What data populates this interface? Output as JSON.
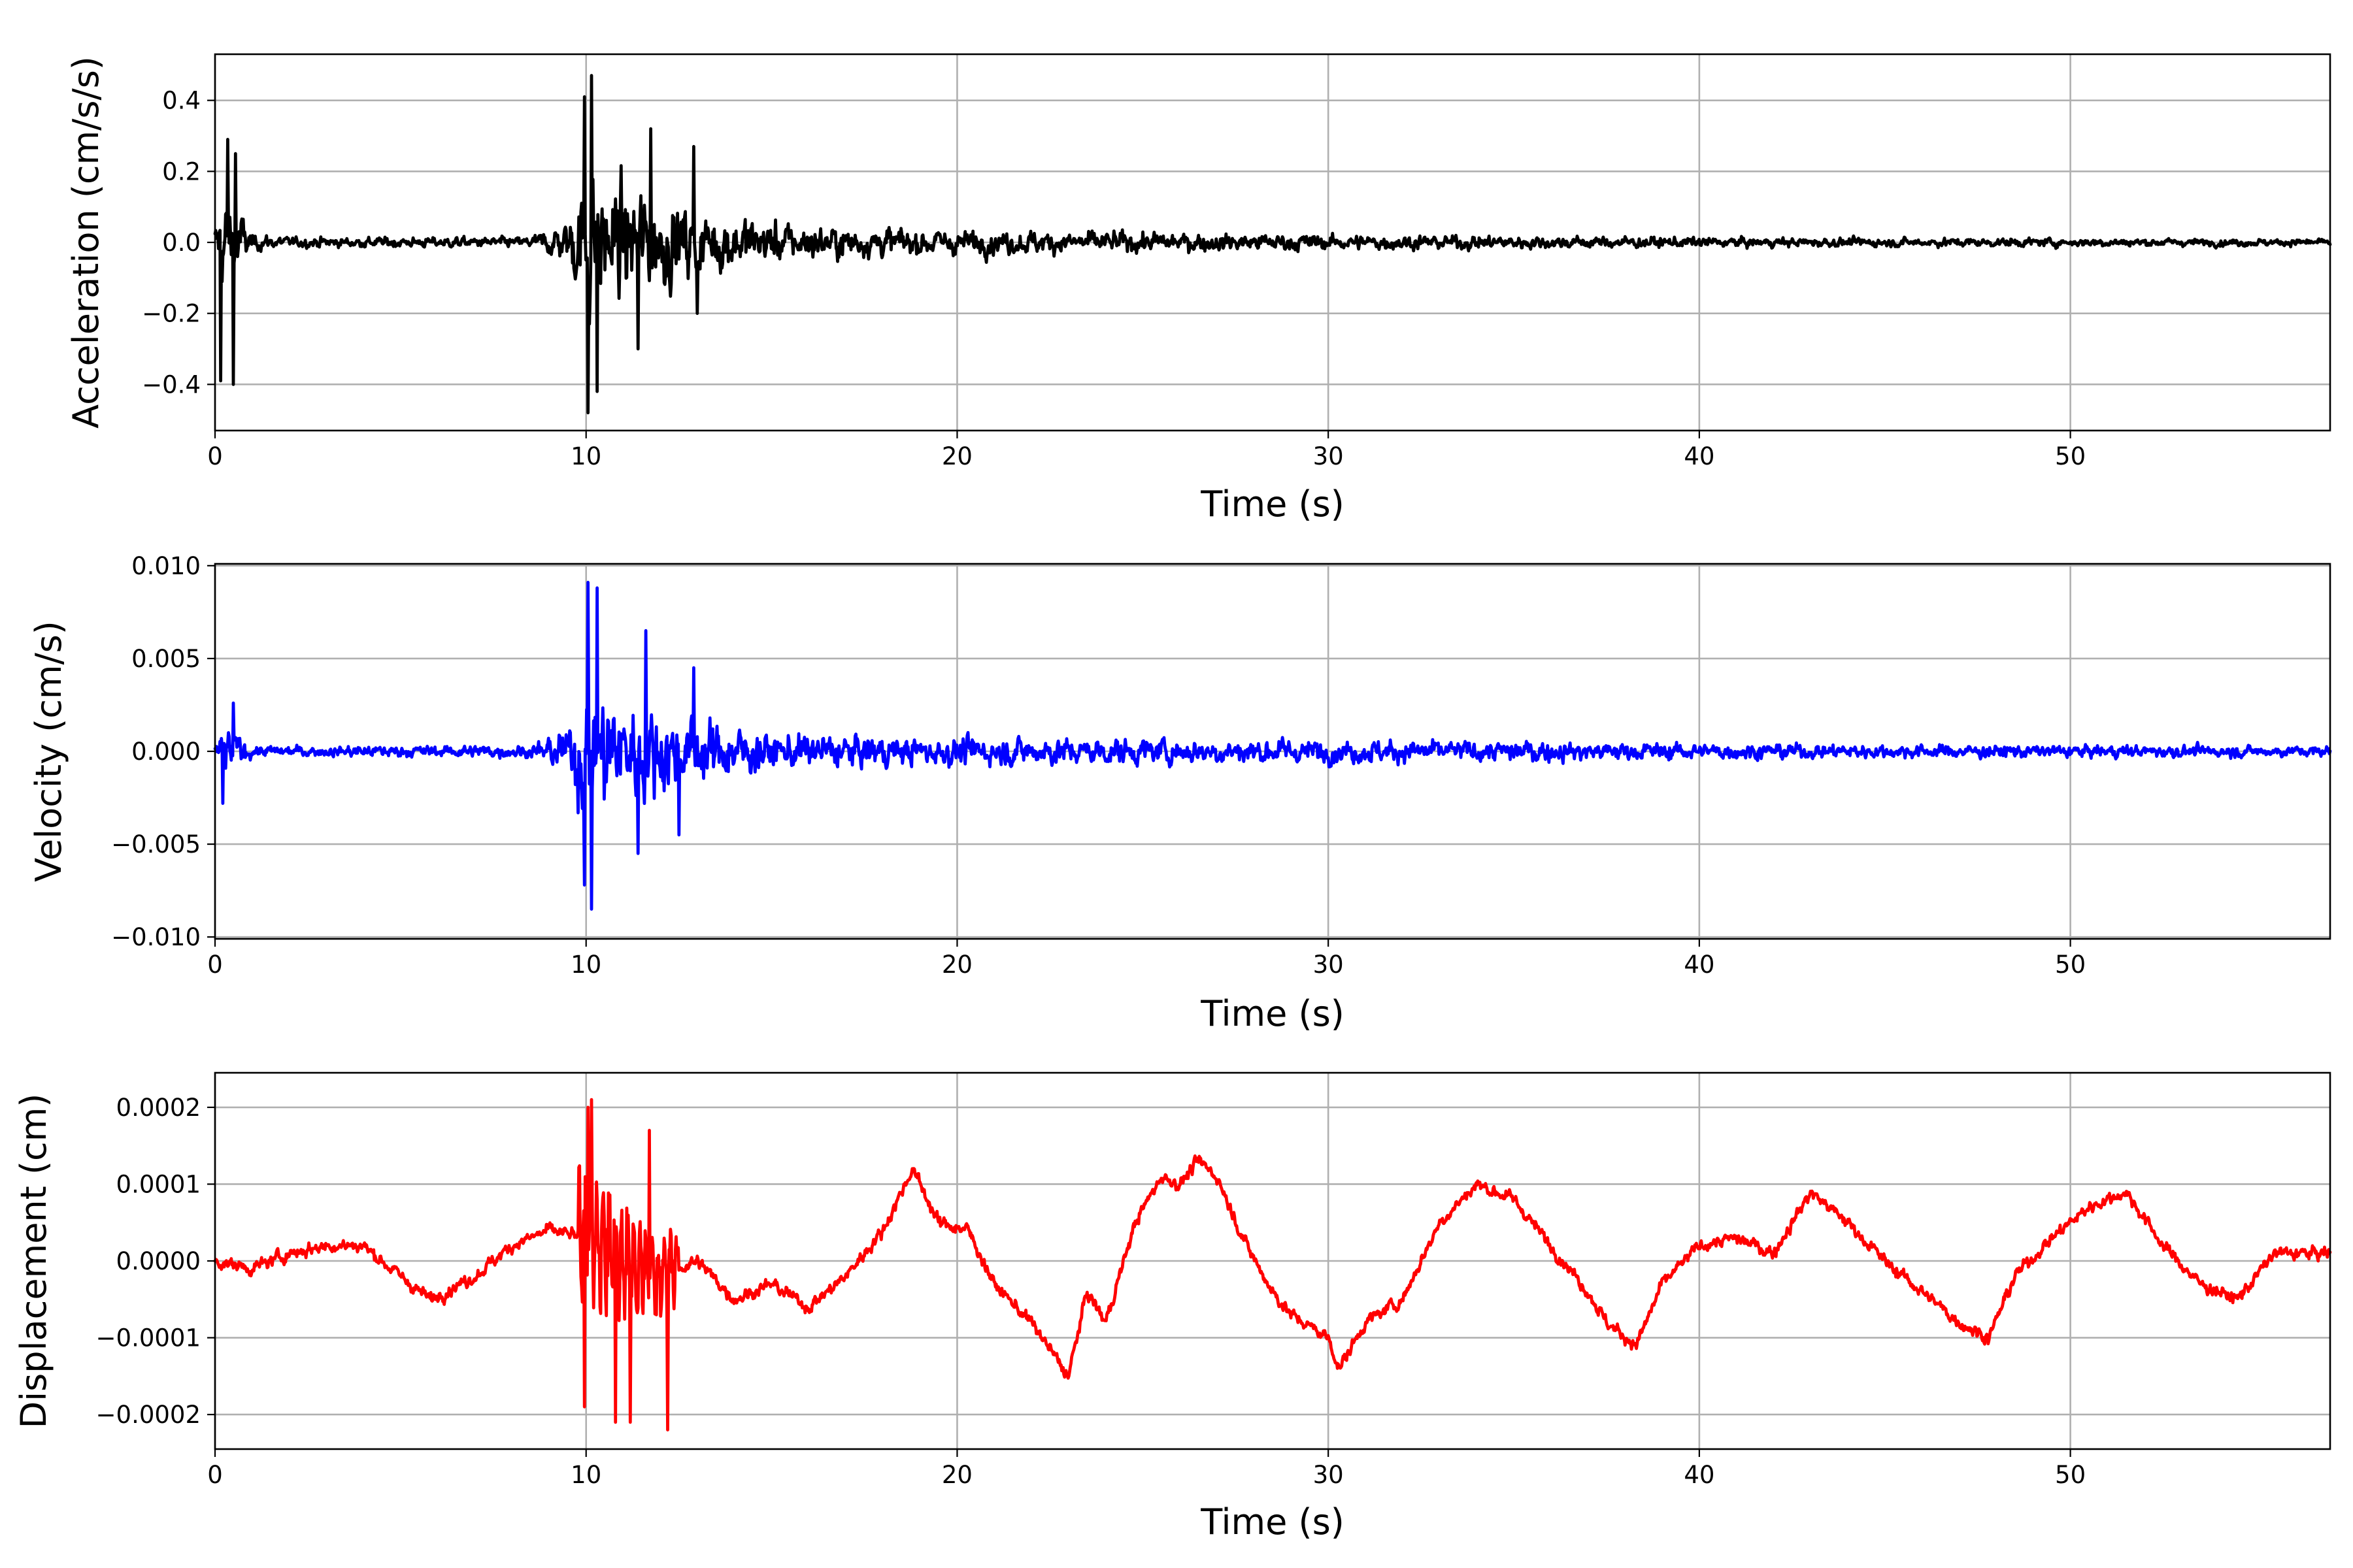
{
  "colors": {
    "acceleration": "#000000",
    "velocity": "#0000ff",
    "displacement": "#ff0000",
    "grid": "#b0b0b0",
    "background": "#ffffff"
  },
  "chart_data": [
    {
      "type": "line",
      "title": "",
      "xlabel": "Time (s)",
      "ylabel": "Acceleration (cm/s/s)",
      "xlim": [
        0,
        57
      ],
      "ylim": [
        -0.53,
        0.53
      ],
      "xticks": [
        0,
        10,
        20,
        30,
        40,
        50
      ],
      "xtick_labels": [
        "0",
        "10",
        "20",
        "30",
        "40",
        "50"
      ],
      "yticks": [
        -0.4,
        -0.2,
        0.0,
        0.2,
        0.4
      ],
      "ytick_labels": [
        "−0.4",
        "−0.2",
        "0.0",
        "0.2",
        "0.4"
      ],
      "grid": true,
      "legend": "none",
      "series": [
        {
          "color": "#000000",
          "signal": "noisy seismic acceleration trace; envelope by time",
          "x": [
            0,
            0.2,
            0.5,
            1,
            2,
            8.5,
            9.5,
            10,
            10.5,
            11,
            12,
            13,
            15,
            17,
            20,
            25,
            30,
            35,
            40,
            45,
            50,
            57
          ],
          "y_envelope": [
            0.1,
            0.28,
            0.25,
            0.05,
            0.03,
            0.03,
            0.13,
            0.46,
            0.38,
            0.33,
            0.28,
            0.2,
            0.12,
            0.09,
            0.07,
            0.06,
            0.045,
            0.04,
            0.03,
            0.025,
            0.025,
            0.02
          ],
          "spikes": [
            [
              0.15,
              -0.39
            ],
            [
              0.35,
              0.29
            ],
            [
              0.5,
              -0.4
            ],
            [
              0.55,
              0.25
            ],
            [
              9.95,
              0.41
            ],
            [
              10.05,
              -0.48
            ],
            [
              10.15,
              0.47
            ],
            [
              10.3,
              -0.42
            ],
            [
              11.4,
              -0.3
            ],
            [
              11.75,
              0.32
            ],
            [
              12.9,
              0.27
            ],
            [
              13.0,
              -0.2
            ]
          ]
        }
      ]
    },
    {
      "type": "line",
      "title": "",
      "xlabel": "Time (s)",
      "ylabel": "Velocity (cm/s)",
      "xlim": [
        0,
        57
      ],
      "ylim": [
        -0.0101,
        0.0101
      ],
      "xticks": [
        0,
        10,
        20,
        30,
        40,
        50
      ],
      "xtick_labels": [
        "0",
        "10",
        "20",
        "30",
        "40",
        "50"
      ],
      "yticks": [
        -0.01,
        -0.005,
        0.0,
        0.005,
        0.01
      ],
      "ytick_labels": [
        "−0.010",
        "−0.005",
        "0.000",
        "0.005",
        "0.010"
      ],
      "grid": true,
      "legend": "none",
      "series": [
        {
          "color": "#0000ff",
          "signal": "seismic velocity trace; envelope by time",
          "x": [
            0,
            0.3,
            0.6,
            1,
            8.5,
            9.5,
            10,
            10.5,
            11,
            12,
            13,
            15,
            17,
            20,
            25,
            30,
            35,
            40,
            45,
            50,
            57
          ],
          "y_envelope": [
            0.0008,
            0.0025,
            0.0022,
            0.0006,
            0.0007,
            0.0025,
            0.009,
            0.0075,
            0.006,
            0.0045,
            0.0035,
            0.0022,
            0.0018,
            0.0016,
            0.0015,
            0.0013,
            0.0012,
            0.0009,
            0.0008,
            0.0007,
            0.0006
          ],
          "spikes": [
            [
              0.2,
              -0.0028
            ],
            [
              0.5,
              0.0026
            ],
            [
              9.95,
              -0.0072
            ],
            [
              10.05,
              0.0091
            ],
            [
              10.15,
              -0.0085
            ],
            [
              10.3,
              0.0088
            ],
            [
              11.4,
              -0.0055
            ],
            [
              11.6,
              0.0065
            ],
            [
              12.5,
              -0.0045
            ],
            [
              12.9,
              0.0045
            ]
          ]
        }
      ]
    },
    {
      "type": "line",
      "title": "",
      "xlabel": "Time (s)",
      "ylabel": "Displacement (cm)",
      "xlim": [
        0,
        57
      ],
      "ylim": [
        -0.000245,
        0.000245
      ],
      "xticks": [
        0,
        10,
        20,
        30,
        40,
        50
      ],
      "xtick_labels": [
        "0",
        "10",
        "20",
        "30",
        "40",
        "50"
      ],
      "yticks": [
        -0.0002,
        -0.0001,
        0.0,
        0.0001,
        0.0002
      ],
      "ytick_labels": [
        "−0.0002",
        "−0.0001",
        "0.0000",
        "0.0001",
        "0.0002"
      ],
      "grid": true,
      "legend": "none",
      "series": [
        {
          "color": "#ff0000",
          "signal": "slow baseline drift plus high-frequency burst after 10 s",
          "x": [
            0,
            1,
            2,
            3,
            4,
            5,
            5.8,
            7,
            8,
            9,
            10,
            11,
            12,
            13,
            14,
            15,
            16,
            17,
            18,
            18.8,
            19.5,
            20.3,
            21,
            22,
            23,
            23.5,
            24,
            24.8,
            25.5,
            26,
            26.5,
            27,
            27.8,
            28.5,
            29,
            30,
            30.3,
            31,
            32,
            33,
            34,
            35,
            36,
            37,
            37.5,
            38.3,
            39,
            40,
            41,
            42,
            43,
            44,
            45,
            46,
            47,
            47.8,
            48.5,
            49.5,
            50.5,
            51.5,
            52.5,
            53.5,
            54.5,
            55.5,
            57
          ],
          "y": [
            0.0,
            -1e-05,
            1e-05,
            2e-05,
            2e-05,
            -2e-05,
            -5e-05,
            -2e-05,
            2e-05,
            4e-05,
            3e-05,
            0.0,
            -2e-05,
            0.0,
            -5e-05,
            -3e-05,
            -6e-05,
            -2e-05,
            4e-05,
            0.00012,
            5e-05,
            4e-05,
            -3e-05,
            -8e-05,
            -0.00015,
            -4e-05,
            -8e-05,
            5e-05,
            0.00011,
            0.0001,
            0.00013,
            0.00011,
            2e-05,
            -4e-05,
            -7e-05,
            -0.0001,
            -0.00014,
            -8e-05,
            -5e-05,
            5e-05,
            0.0001,
            8e-05,
            2e-05,
            -4e-05,
            -8e-05,
            -0.00011,
            -3e-05,
            2e-05,
            3e-05,
            1e-05,
            9e-05,
            5e-05,
            0.0,
            -4e-05,
            -8e-05,
            -0.0001,
            -2e-05,
            3e-05,
            7e-05,
            9e-05,
            2e-05,
            -3e-05,
            -5e-05,
            1e-05,
            1e-05
          ],
          "noise_amplitude": 1.5e-05,
          "burst": {
            "t_start": 9.8,
            "t_end": 12.5,
            "amplitude": 0.00018
          },
          "spikes": [
            [
              9.95,
              -0.00019
            ],
            [
              10.05,
              0.0002
            ],
            [
              10.15,
              0.00021
            ],
            [
              10.8,
              -0.00021
            ],
            [
              11.2,
              -0.00021
            ],
            [
              12.2,
              -0.00022
            ],
            [
              11.7,
              0.00017
            ]
          ]
        }
      ]
    }
  ]
}
